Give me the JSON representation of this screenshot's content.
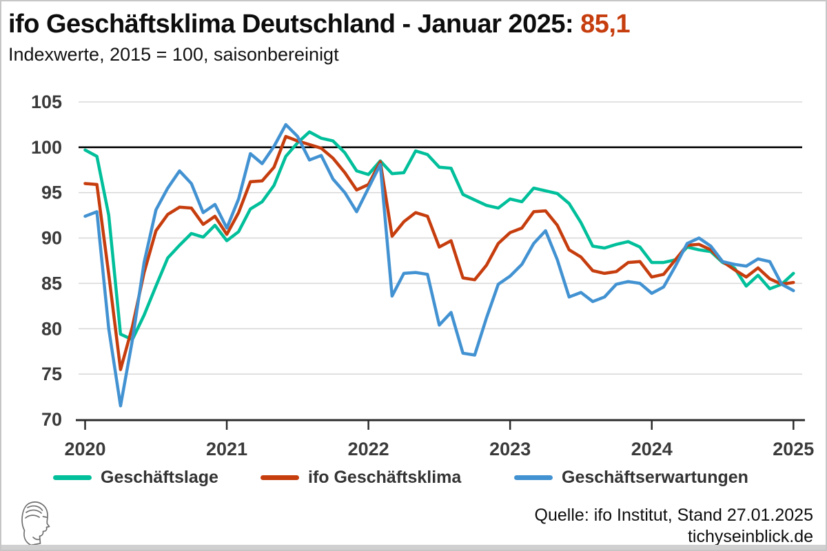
{
  "header": {
    "title_main": "ifo Geschäftsklima Deutschland - Januar 2025:",
    "title_value": "85,1",
    "subtitle": "Indexwerte, 2015 = 100, saisonbereinigt"
  },
  "chart_data": {
    "type": "line",
    "title": "ifo Geschäftsklima Deutschland - Januar 2025: 85,1",
    "subtitle": "Indexwerte, 2015 = 100, saisonbereinigt",
    "x_frequency": "monthly",
    "x_start": "2020-01",
    "x_end": "2025-01",
    "x_tick_labels": [
      "2020",
      "2021",
      "2022",
      "2023",
      "2024",
      "2025"
    ],
    "y_ticks": [
      70,
      75,
      80,
      85,
      90,
      95,
      100,
      105
    ],
    "ylim": [
      70,
      105
    ],
    "reference_line": 100,
    "grid": true,
    "legend_position": "bottom",
    "series": [
      {
        "name": "Geschäftslage",
        "color": "#00bf9a",
        "values": [
          99.7,
          99.0,
          92.5,
          79.4,
          78.8,
          81.5,
          84.7,
          87.8,
          89.2,
          90.5,
          90.1,
          91.4,
          89.7,
          90.7,
          93.2,
          94.0,
          95.8,
          99.0,
          100.5,
          101.7,
          101.0,
          100.7,
          99.4,
          97.4,
          97.0,
          98.5,
          97.1,
          97.2,
          99.6,
          99.2,
          97.8,
          97.7,
          94.8,
          94.2,
          93.6,
          93.3,
          94.3,
          94.0,
          95.5,
          95.2,
          94.9,
          93.8,
          91.7,
          89.1,
          88.9,
          89.3,
          89.6,
          89.0,
          87.3,
          87.3,
          87.6,
          89.0,
          88.7,
          88.5,
          87.3,
          86.7,
          84.7,
          85.9,
          84.4,
          84.9,
          86.1
        ]
      },
      {
        "name": "ifo Geschäftsklima",
        "color": "#c63d0e",
        "values": [
          96.0,
          95.9,
          86.0,
          75.5,
          80.2,
          86.2,
          90.8,
          92.6,
          93.4,
          93.3,
          91.5,
          92.4,
          90.4,
          92.8,
          96.2,
          96.3,
          97.8,
          101.2,
          100.7,
          100.3,
          99.9,
          98.8,
          97.2,
          95.3,
          95.9,
          98.4,
          90.2,
          91.8,
          92.8,
          92.4,
          89.0,
          89.7,
          85.6,
          85.4,
          87.0,
          89.4,
          90.6,
          91.1,
          92.9,
          93.0,
          91.4,
          88.7,
          87.9,
          86.4,
          86.1,
          86.3,
          87.3,
          87.4,
          85.7,
          86.0,
          87.6,
          89.2,
          89.3,
          88.7,
          87.4,
          86.5,
          85.7,
          86.7,
          85.5,
          84.9,
          85.1
        ]
      },
      {
        "name": "Geschäftserwartungen",
        "color": "#4292d2",
        "values": [
          92.4,
          92.9,
          80.0,
          71.5,
          78.7,
          87.3,
          93.1,
          95.5,
          97.4,
          96.0,
          92.8,
          93.7,
          91.1,
          94.3,
          99.3,
          98.2,
          100.1,
          102.5,
          101.2,
          98.6,
          99.1,
          96.5,
          95.0,
          92.9,
          95.5,
          98.1,
          83.6,
          86.1,
          86.2,
          86.0,
          80.4,
          81.8,
          77.3,
          77.1,
          81.2,
          84.9,
          85.8,
          87.1,
          89.4,
          90.8,
          87.6,
          83.5,
          84.0,
          83.0,
          83.5,
          84.9,
          85.2,
          85.0,
          83.9,
          84.6,
          86.9,
          89.4,
          90.0,
          89.1,
          87.4,
          87.1,
          86.9,
          87.7,
          87.4,
          84.9,
          84.2
        ]
      }
    ]
  },
  "footer": {
    "source_line1": "Quelle: ifo Institut, Stand 27.01.2025",
    "source_line2": "tichyseinblick.de",
    "logo_alt": "tichys-einblick-classical-head-logo"
  },
  "colors": {
    "accent_red": "#c63d0e",
    "grid": "#d9d9d9",
    "reference_line": "#000000",
    "axis": "#2b2b2b",
    "tick_text": "#3a3a3a",
    "bottom_strip": "#d0d0d0"
  }
}
